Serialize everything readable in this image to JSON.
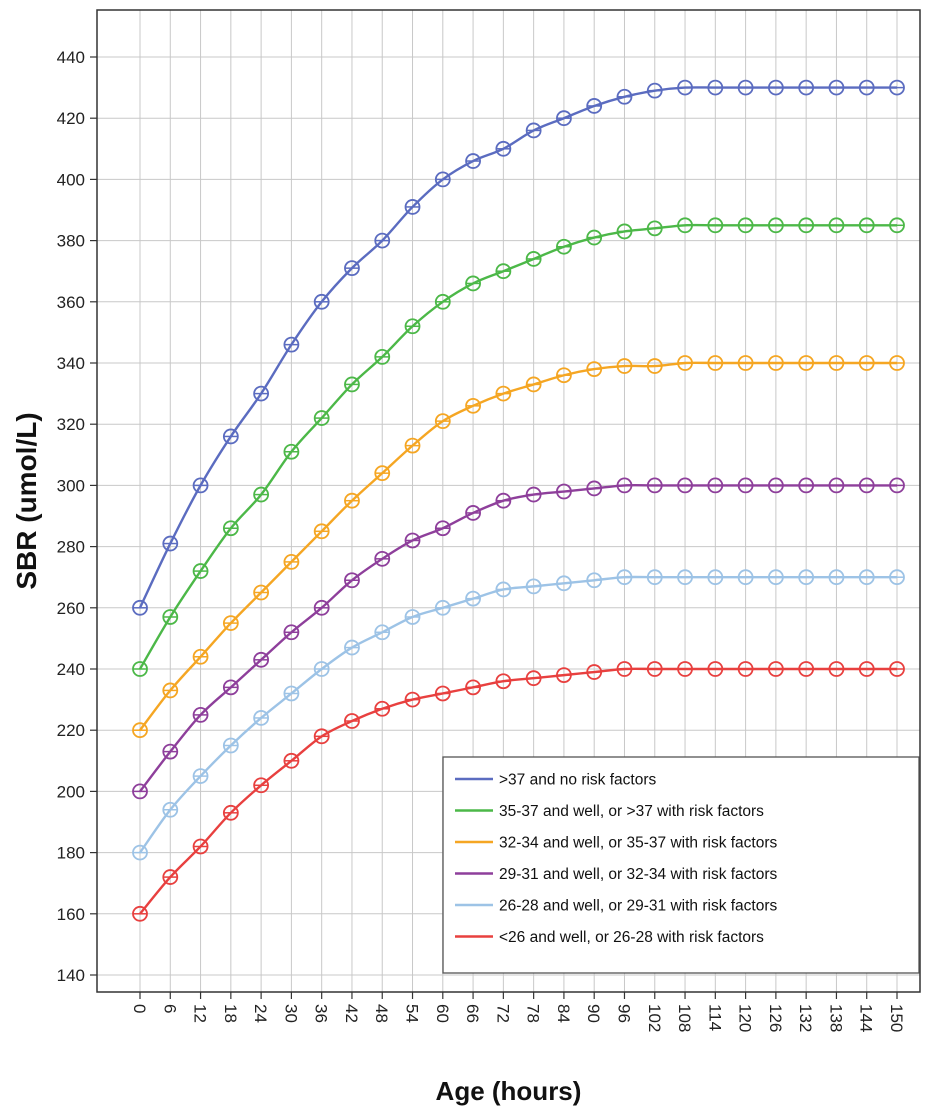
{
  "chart_data": {
    "type": "line",
    "xlabel": "Age (hours)",
    "ylabel": "SBR (umol/L)",
    "x": [
      0,
      6,
      12,
      18,
      24,
      30,
      36,
      42,
      48,
      54,
      60,
      66,
      72,
      78,
      84,
      90,
      96,
      102,
      108,
      114,
      120,
      126,
      132,
      138,
      144,
      150
    ],
    "x_tick_labels": [
      "0",
      "6",
      "12",
      "18",
      "24",
      "30",
      "36",
      "42",
      "48",
      "54",
      "60",
      "66",
      "72",
      "78",
      "84",
      "90",
      "96",
      "102",
      "108",
      "114",
      "120",
      "126",
      "132",
      "138",
      "144",
      "150"
    ],
    "y_ticks": [
      140,
      160,
      180,
      200,
      220,
      240,
      260,
      280,
      300,
      320,
      340,
      360,
      380,
      400,
      420,
      440
    ],
    "ylim": [
      135,
      450
    ],
    "grid": true,
    "legend_position": "bottom-right",
    "series": [
      {
        "name": ">37 and no risk factors",
        "color": "#5b6cc0",
        "values": [
          260,
          281,
          300,
          316,
          330,
          346,
          360,
          371,
          380,
          391,
          400,
          406,
          410,
          416,
          420,
          424,
          427,
          429,
          430,
          430,
          430,
          430,
          430,
          430,
          430,
          430
        ]
      },
      {
        "name": "35-37 and well, or >37  with risk factors",
        "color": "#4cb848",
        "values": [
          240,
          257,
          272,
          286,
          297,
          311,
          322,
          333,
          342,
          352,
          360,
          366,
          370,
          374,
          378,
          381,
          383,
          384,
          385,
          385,
          385,
          385,
          385,
          385,
          385,
          385
        ]
      },
      {
        "name": "32-34 and well, or 35-37 with risk factors",
        "color": "#f5a623",
        "values": [
          220,
          233,
          244,
          255,
          265,
          275,
          285,
          295,
          304,
          313,
          321,
          326,
          330,
          333,
          336,
          338,
          339,
          339,
          340,
          340,
          340,
          340,
          340,
          340,
          340,
          340
        ]
      },
      {
        "name": "29-31 and well, or 32-34 with risk factors",
        "color": "#8e3f9b",
        "values": [
          200,
          213,
          225,
          234,
          243,
          252,
          260,
          269,
          276,
          282,
          286,
          291,
          295,
          297,
          298,
          299,
          300,
          300,
          300,
          300,
          300,
          300,
          300,
          300,
          300,
          300
        ]
      },
      {
        "name": "26-28 and well, or 29-31 with risk factors",
        "color": "#9dc3e6",
        "values": [
          180,
          194,
          205,
          215,
          224,
          232,
          240,
          247,
          252,
          257,
          260,
          263,
          266,
          267,
          268,
          269,
          270,
          270,
          270,
          270,
          270,
          270,
          270,
          270,
          270,
          270
        ]
      },
      {
        "name": "<26 and well, or 26-28 with risk factors",
        "color": "#e8403f",
        "values": [
          160,
          172,
          182,
          193,
          202,
          210,
          218,
          223,
          227,
          230,
          232,
          234,
          236,
          237,
          238,
          239,
          240,
          240,
          240,
          240,
          240,
          240,
          240,
          240,
          240,
          240
        ]
      }
    ]
  }
}
